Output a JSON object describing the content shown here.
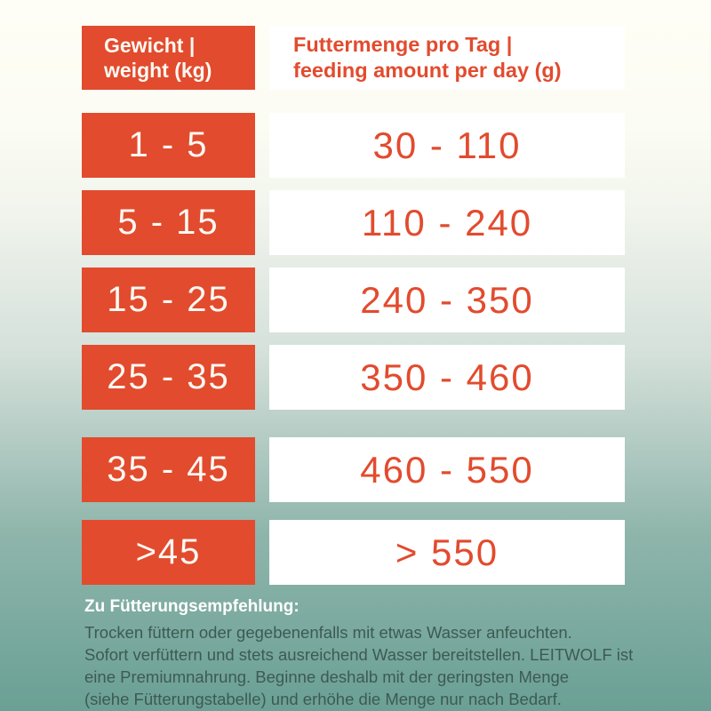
{
  "page": {
    "accent_orange": "#e24b2e",
    "background_top": "#fffef6",
    "background_bottom": "#6aa095",
    "footer_text_color": "#3d5a52"
  },
  "table": {
    "header": {
      "weight_label": "Gewicht |\nweight (kg)",
      "amount_label": "Futtermenge pro Tag |\nfeeding amount per day (g)"
    },
    "rows": [
      {
        "weight": "1 - 5",
        "amount": "30 - 110"
      },
      {
        "weight": "5 - 15",
        "amount": "110 - 240"
      },
      {
        "weight": "15 - 25",
        "amount": "240 - 350"
      },
      {
        "weight": "25 - 35",
        "amount": "350 - 460"
      },
      {
        "weight": "35 - 45",
        "amount": "460 - 550"
      },
      {
        "weight": ">45",
        "amount": "> 550"
      }
    ]
  },
  "footer": {
    "heading": "Zu Fütterungsempfehlung:",
    "lines": [
      "Trocken füttern oder gegebenenfalls mit etwas Wasser anfeuchten.",
      "Sofort verfüttern und stets ausreichend Wasser bereitstellen. LEITWOLF ist",
      "eine Premiumnahrung. Beginne deshalb mit der geringsten Menge",
      "(siehe Fütterungstabelle) und erhöhe die Menge nur nach Bedarf."
    ]
  },
  "chart_data": {
    "type": "table",
    "columns": [
      "Gewicht | weight (kg)",
      "Futtermenge pro Tag | feeding amount per day (g)"
    ],
    "rows": [
      [
        "1 - 5",
        "30 - 110"
      ],
      [
        "5 - 15",
        "110 - 240"
      ],
      [
        "15 - 25",
        "240 - 350"
      ],
      [
        "25 - 35",
        "350 - 460"
      ],
      [
        "35 - 45",
        "460 - 550"
      ],
      [
        ">45",
        "> 550"
      ]
    ]
  }
}
